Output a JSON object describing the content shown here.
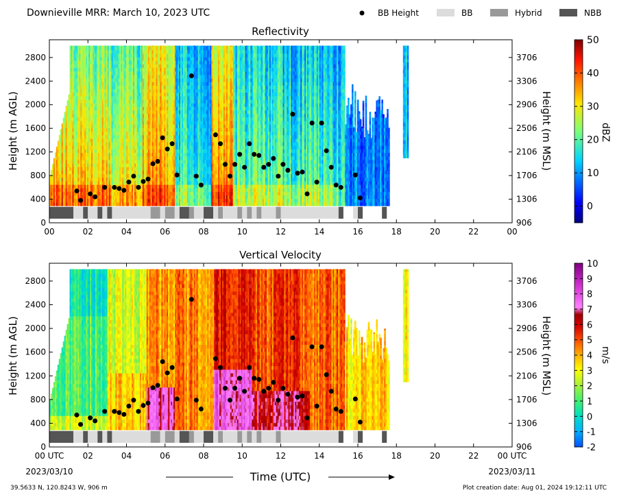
{
  "header": {
    "title": "Downieville MRR:  March 10, 2023 UTC",
    "legend": [
      {
        "label": "BB Height",
        "kind": "dot",
        "color": "#000000"
      },
      {
        "label": "BB",
        "kind": "box",
        "color": "#dcdcdc"
      },
      {
        "label": "Hybrid",
        "kind": "box",
        "color": "#999999"
      },
      {
        "label": "NBB",
        "kind": "box",
        "color": "#555555"
      }
    ]
  },
  "footer": {
    "location": "39.5633 N, 120.8243 W, 906 m",
    "creation_date": "Plot creation date: Aug 01, 2024 19:12:11 UTC"
  },
  "chart_data": [
    {
      "type": "heatmap",
      "title": "Reflectivity",
      "ylabel": "Height (m AGL)",
      "ylabel_right": "Height (m MSL)",
      "xlim": [
        0,
        24
      ],
      "ylim": [
        0,
        3100
      ],
      "x_ticks": [
        "00",
        "02",
        "04",
        "06",
        "08",
        "10",
        "12",
        "14",
        "16",
        "18",
        "20",
        "22",
        "00"
      ],
      "y_ticks": [
        0,
        400,
        800,
        1200,
        1600,
        2000,
        2400,
        2800
      ],
      "y_ticks_right": [
        "906",
        "1306",
        "1706",
        "2106",
        "2506",
        "2906",
        "3306",
        "3706"
      ],
      "colorbar": {
        "label": "dBZ",
        "min": -5,
        "max": 50,
        "ticks": [
          0,
          10,
          20,
          30,
          40,
          50
        ],
        "colormap": "jet"
      },
      "bb_height": {
        "times": [
          1.42,
          1.62,
          2.12,
          2.37,
          2.87,
          3.37,
          3.62,
          3.87,
          4.12,
          4.37,
          4.62,
          4.87,
          5.12,
          5.37,
          5.62,
          5.87,
          6.12,
          6.37,
          6.62,
          7.37,
          7.62,
          7.87,
          8.62,
          8.87,
          9.12,
          9.37,
          9.62,
          9.87,
          10.12,
          10.37,
          10.62,
          10.87,
          11.12,
          11.37,
          11.62,
          11.87,
          12.12,
          12.37,
          12.62,
          12.87,
          13.12,
          13.37,
          13.62,
          13.87,
          14.12,
          14.37,
          14.62,
          14.87,
          15.12,
          15.87,
          16.12
        ],
        "heights": [
          540,
          380,
          490,
          440,
          600,
          600,
          580,
          550,
          690,
          790,
          600,
          700,
          740,
          1000,
          1040,
          1440,
          1250,
          1340,
          810,
          2490,
          790,
          640,
          1490,
          1340,
          990,
          790,
          990,
          1160,
          940,
          1340,
          1160,
          1140,
          940,
          990,
          1090,
          790,
          990,
          890,
          1840,
          840,
          860,
          490,
          1690,
          690,
          1690,
          1220,
          940,
          640,
          600,
          810,
          420
        ]
      },
      "bb_type": {
        "row_label": "",
        "segments": [
          {
            "start": 0.0,
            "end": 1.25,
            "class": "NBB"
          },
          {
            "start": 1.25,
            "end": 1.75,
            "class": "BB"
          },
          {
            "start": 1.75,
            "end": 2.0,
            "class": "NBB"
          },
          {
            "start": 2.0,
            "end": 2.5,
            "class": "BB"
          },
          {
            "start": 2.5,
            "end": 2.75,
            "class": "NBB"
          },
          {
            "start": 2.75,
            "end": 3.0,
            "class": "BB"
          },
          {
            "start": 3.0,
            "end": 3.25,
            "class": "NBB"
          },
          {
            "start": 3.25,
            "end": 5.25,
            "class": "BB"
          },
          {
            "start": 5.25,
            "end": 5.75,
            "class": "Hybrid"
          },
          {
            "start": 5.75,
            "end": 6.0,
            "class": "BB"
          },
          {
            "start": 6.0,
            "end": 6.5,
            "class": "Hybrid"
          },
          {
            "start": 6.5,
            "end": 6.75,
            "class": "BB"
          },
          {
            "start": 6.75,
            "end": 7.25,
            "class": "NBB"
          },
          {
            "start": 7.25,
            "end": 7.5,
            "class": "Hybrid"
          },
          {
            "start": 7.5,
            "end": 8.0,
            "class": "BB"
          },
          {
            "start": 8.0,
            "end": 8.5,
            "class": "NBB"
          },
          {
            "start": 8.5,
            "end": 8.75,
            "class": "BB"
          },
          {
            "start": 8.75,
            "end": 9.0,
            "class": "Hybrid"
          },
          {
            "start": 9.0,
            "end": 9.75,
            "class": "BB"
          },
          {
            "start": 9.75,
            "end": 10.0,
            "class": "Hybrid"
          },
          {
            "start": 10.0,
            "end": 10.25,
            "class": "BB"
          },
          {
            "start": 10.25,
            "end": 10.5,
            "class": "Hybrid"
          },
          {
            "start": 10.5,
            "end": 10.75,
            "class": "BB"
          },
          {
            "start": 10.75,
            "end": 11.0,
            "class": "Hybrid"
          },
          {
            "start": 11.0,
            "end": 11.75,
            "class": "BB"
          },
          {
            "start": 11.75,
            "end": 12.0,
            "class": "Hybrid"
          },
          {
            "start": 12.0,
            "end": 15.0,
            "class": "BB"
          },
          {
            "start": 15.0,
            "end": 15.25,
            "class": "NBB"
          },
          {
            "start": 15.75,
            "end": 16.0,
            "class": "BB"
          },
          {
            "start": 16.0,
            "end": 16.25,
            "class": "NBB"
          },
          {
            "start": 17.25,
            "end": 17.5,
            "class": "NBB"
          }
        ]
      }
    },
    {
      "type": "heatmap",
      "title": "Vertical Velocity",
      "xlabel": "Time (UTC)",
      "ylabel": "Height (m AGL)",
      "ylabel_right": "Height (m MSL)",
      "xlim": [
        0,
        24
      ],
      "ylim": [
        0,
        3100
      ],
      "x_ticks": [
        "00 UTC",
        "02",
        "04",
        "06",
        "08",
        "10",
        "12",
        "14",
        "16",
        "18",
        "20",
        "22",
        "00 UTC"
      ],
      "x_dates": [
        "2023/03/10",
        "2023/03/11"
      ],
      "y_ticks": [
        0,
        400,
        800,
        1200,
        1600,
        2000,
        2400,
        2800
      ],
      "y_ticks_right": [
        "906",
        "1306",
        "1706",
        "2106",
        "2506",
        "2906",
        "3306",
        "3706"
      ],
      "colorbar": {
        "label": "m/s",
        "min": -2,
        "max": 10,
        "ticks": [
          -2,
          -1,
          0,
          1,
          2,
          3,
          4,
          5,
          6,
          7,
          8,
          9,
          10
        ],
        "colormap": "velocity"
      },
      "bb_height": "same as Reflectivity",
      "bb_type": "same as Reflectivity"
    }
  ]
}
